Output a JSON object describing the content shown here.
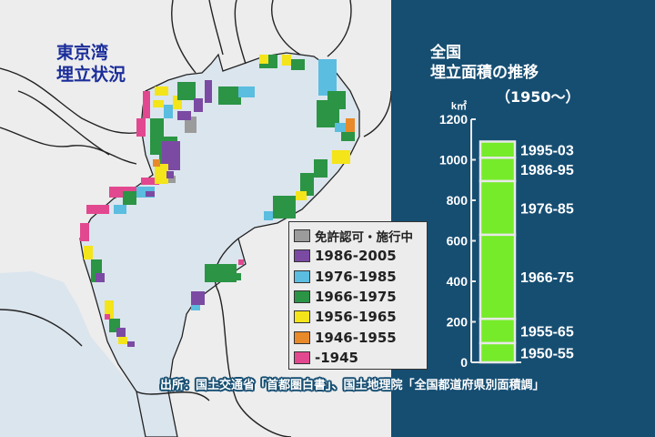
{
  "map": {
    "title_line1": "東京湾",
    "title_line2": "埋立状況",
    "colors": {
      "land": "#ededed",
      "water": "#dbe5ee",
      "panel": "#164e72",
      "title": "#1a2d9a"
    },
    "legend": [
      {
        "label": "免許認可・施行中",
        "color": "#9b9b9b"
      },
      {
        "label": "1986-2005",
        "color": "#7b4aa3"
      },
      {
        "label": "1976-1985",
        "color": "#5bbde0"
      },
      {
        "label": "1966-1975",
        "color": "#2b9445"
      },
      {
        "label": "1956-1965",
        "color": "#f4e41a"
      },
      {
        "label": "1946-1955",
        "color": "#e8892a"
      },
      {
        "label": "-1945",
        "color": "#e2488f"
      }
    ]
  },
  "chart_data": {
    "type": "bar",
    "stacked": true,
    "title_line1": "全国",
    "title_line2": "埋立面積の推移",
    "subtitle": "（1950～）",
    "ylabel": "k㎡",
    "ylim": [
      0,
      1200
    ],
    "yticks": [
      "0",
      "200",
      "400",
      "600",
      "800",
      "1000",
      "1200"
    ],
    "bar_color": "#76eb2a",
    "segments": [
      {
        "label": "1950-55",
        "value": 95
      },
      {
        "label": "1955-65",
        "value": 120
      },
      {
        "label": "1966-75",
        "value": 415
      },
      {
        "label": "1976-85",
        "value": 265
      },
      {
        "label": "1986-95",
        "value": 115
      },
      {
        "label": "1995-03",
        "value": 80
      }
    ]
  },
  "source": "出所：国土交通省「首都圏白書」、国土地理院「全国都道府県別面積調」"
}
